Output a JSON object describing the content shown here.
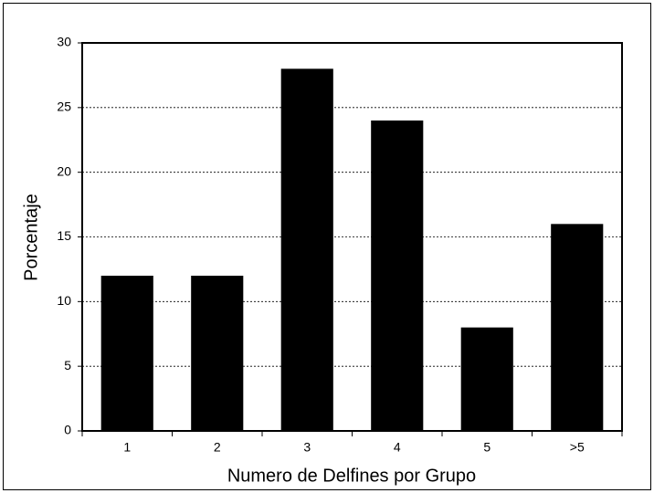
{
  "chart_data": {
    "type": "bar",
    "categories": [
      "1",
      "2",
      "3",
      "4",
      "5",
      ">5"
    ],
    "values": [
      12,
      12,
      28,
      24,
      8,
      16
    ],
    "color": "#000000",
    "xlabel": "Numero de Delfines por Grupo",
    "ylabel": "Porcentaje",
    "ylim": [
      0,
      30
    ],
    "yticks": [
      0,
      5,
      10,
      15,
      20,
      25,
      30
    ],
    "grid": true
  }
}
